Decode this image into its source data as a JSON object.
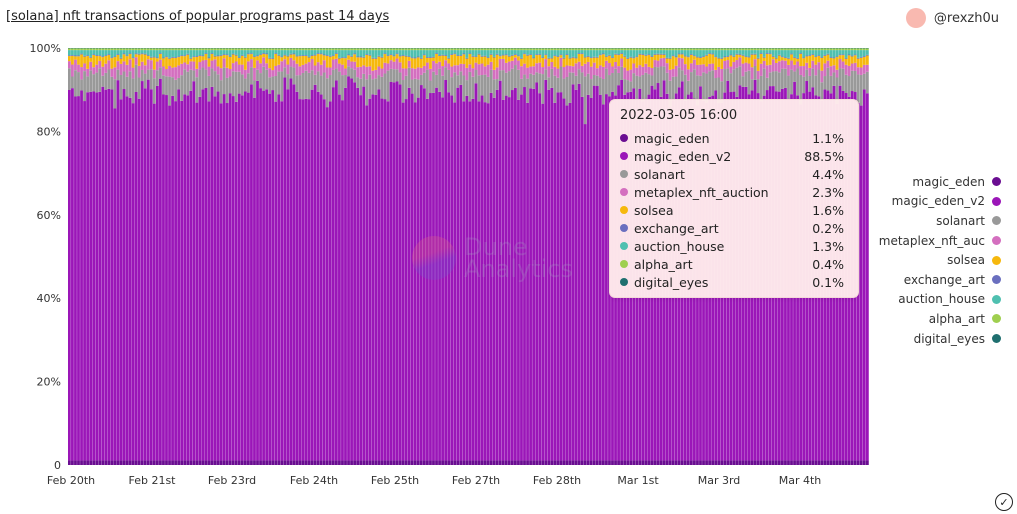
{
  "header": {
    "title": "[solana] nft transactions of popular programs past 14 days",
    "author": "@rexzh0u"
  },
  "watermark": {
    "line1": "Dune",
    "line2": "Analytics"
  },
  "chart_data": {
    "type": "bar",
    "stacked": true,
    "normalized": true,
    "title": "",
    "xlabel": "",
    "ylabel": "",
    "ylim": [
      0,
      100
    ],
    "y_ticks": [
      "0",
      "20%",
      "40%",
      "60%",
      "80%",
      "100%"
    ],
    "x_ticks": [
      "Feb 20th",
      "Feb 21st",
      "Feb 23rd",
      "Feb 24th",
      "Feb 25th",
      "Feb 27th",
      "Feb 28th",
      "Mar 1st",
      "Mar 3rd",
      "Mar 4th"
    ],
    "interval": "hourly",
    "grid": false,
    "legend_position": "right",
    "series": [
      {
        "name": "magic_eden",
        "color": "#6a0d91",
        "typical": 1.1
      },
      {
        "name": "magic_eden_v2",
        "color": "#9b16b8",
        "typical": 88.5
      },
      {
        "name": "solanart",
        "color": "#999999",
        "typical": 4.4
      },
      {
        "name": "metaplex_nft_auc",
        "color": "#d46fbf",
        "typical": 2.3
      },
      {
        "name": "solsea",
        "color": "#f6b80d",
        "typical": 1.6
      },
      {
        "name": "exchange_art",
        "color": "#6a6fbf",
        "typical": 0.2
      },
      {
        "name": "auction_house",
        "color": "#4fc0b0",
        "typical": 1.3
      },
      {
        "name": "alpha_art",
        "color": "#9fcf4f",
        "typical": 0.4
      },
      {
        "name": "digital_eyes",
        "color": "#1f6f6f",
        "typical": 0.1
      }
    ]
  },
  "tooltip": {
    "title": "2022-03-05 16:00",
    "rows": [
      {
        "name": "magic_eden",
        "value": "1.1%",
        "color": "#6a0d91"
      },
      {
        "name": "magic_eden_v2",
        "value": "88.5%",
        "color": "#9b16b8"
      },
      {
        "name": "solanart",
        "value": "4.4%",
        "color": "#999999"
      },
      {
        "name": "metaplex_nft_auction",
        "value": "2.3%",
        "color": "#d46fbf"
      },
      {
        "name": "solsea",
        "value": "1.6%",
        "color": "#f6b80d"
      },
      {
        "name": "exchange_art",
        "value": "0.2%",
        "color": "#6a6fbf"
      },
      {
        "name": "auction_house",
        "value": "1.3%",
        "color": "#4fc0b0"
      },
      {
        "name": "alpha_art",
        "value": "0.4%",
        "color": "#9fcf4f"
      },
      {
        "name": "digital_eyes",
        "value": "0.1%",
        "color": "#1f6f6f"
      }
    ]
  }
}
